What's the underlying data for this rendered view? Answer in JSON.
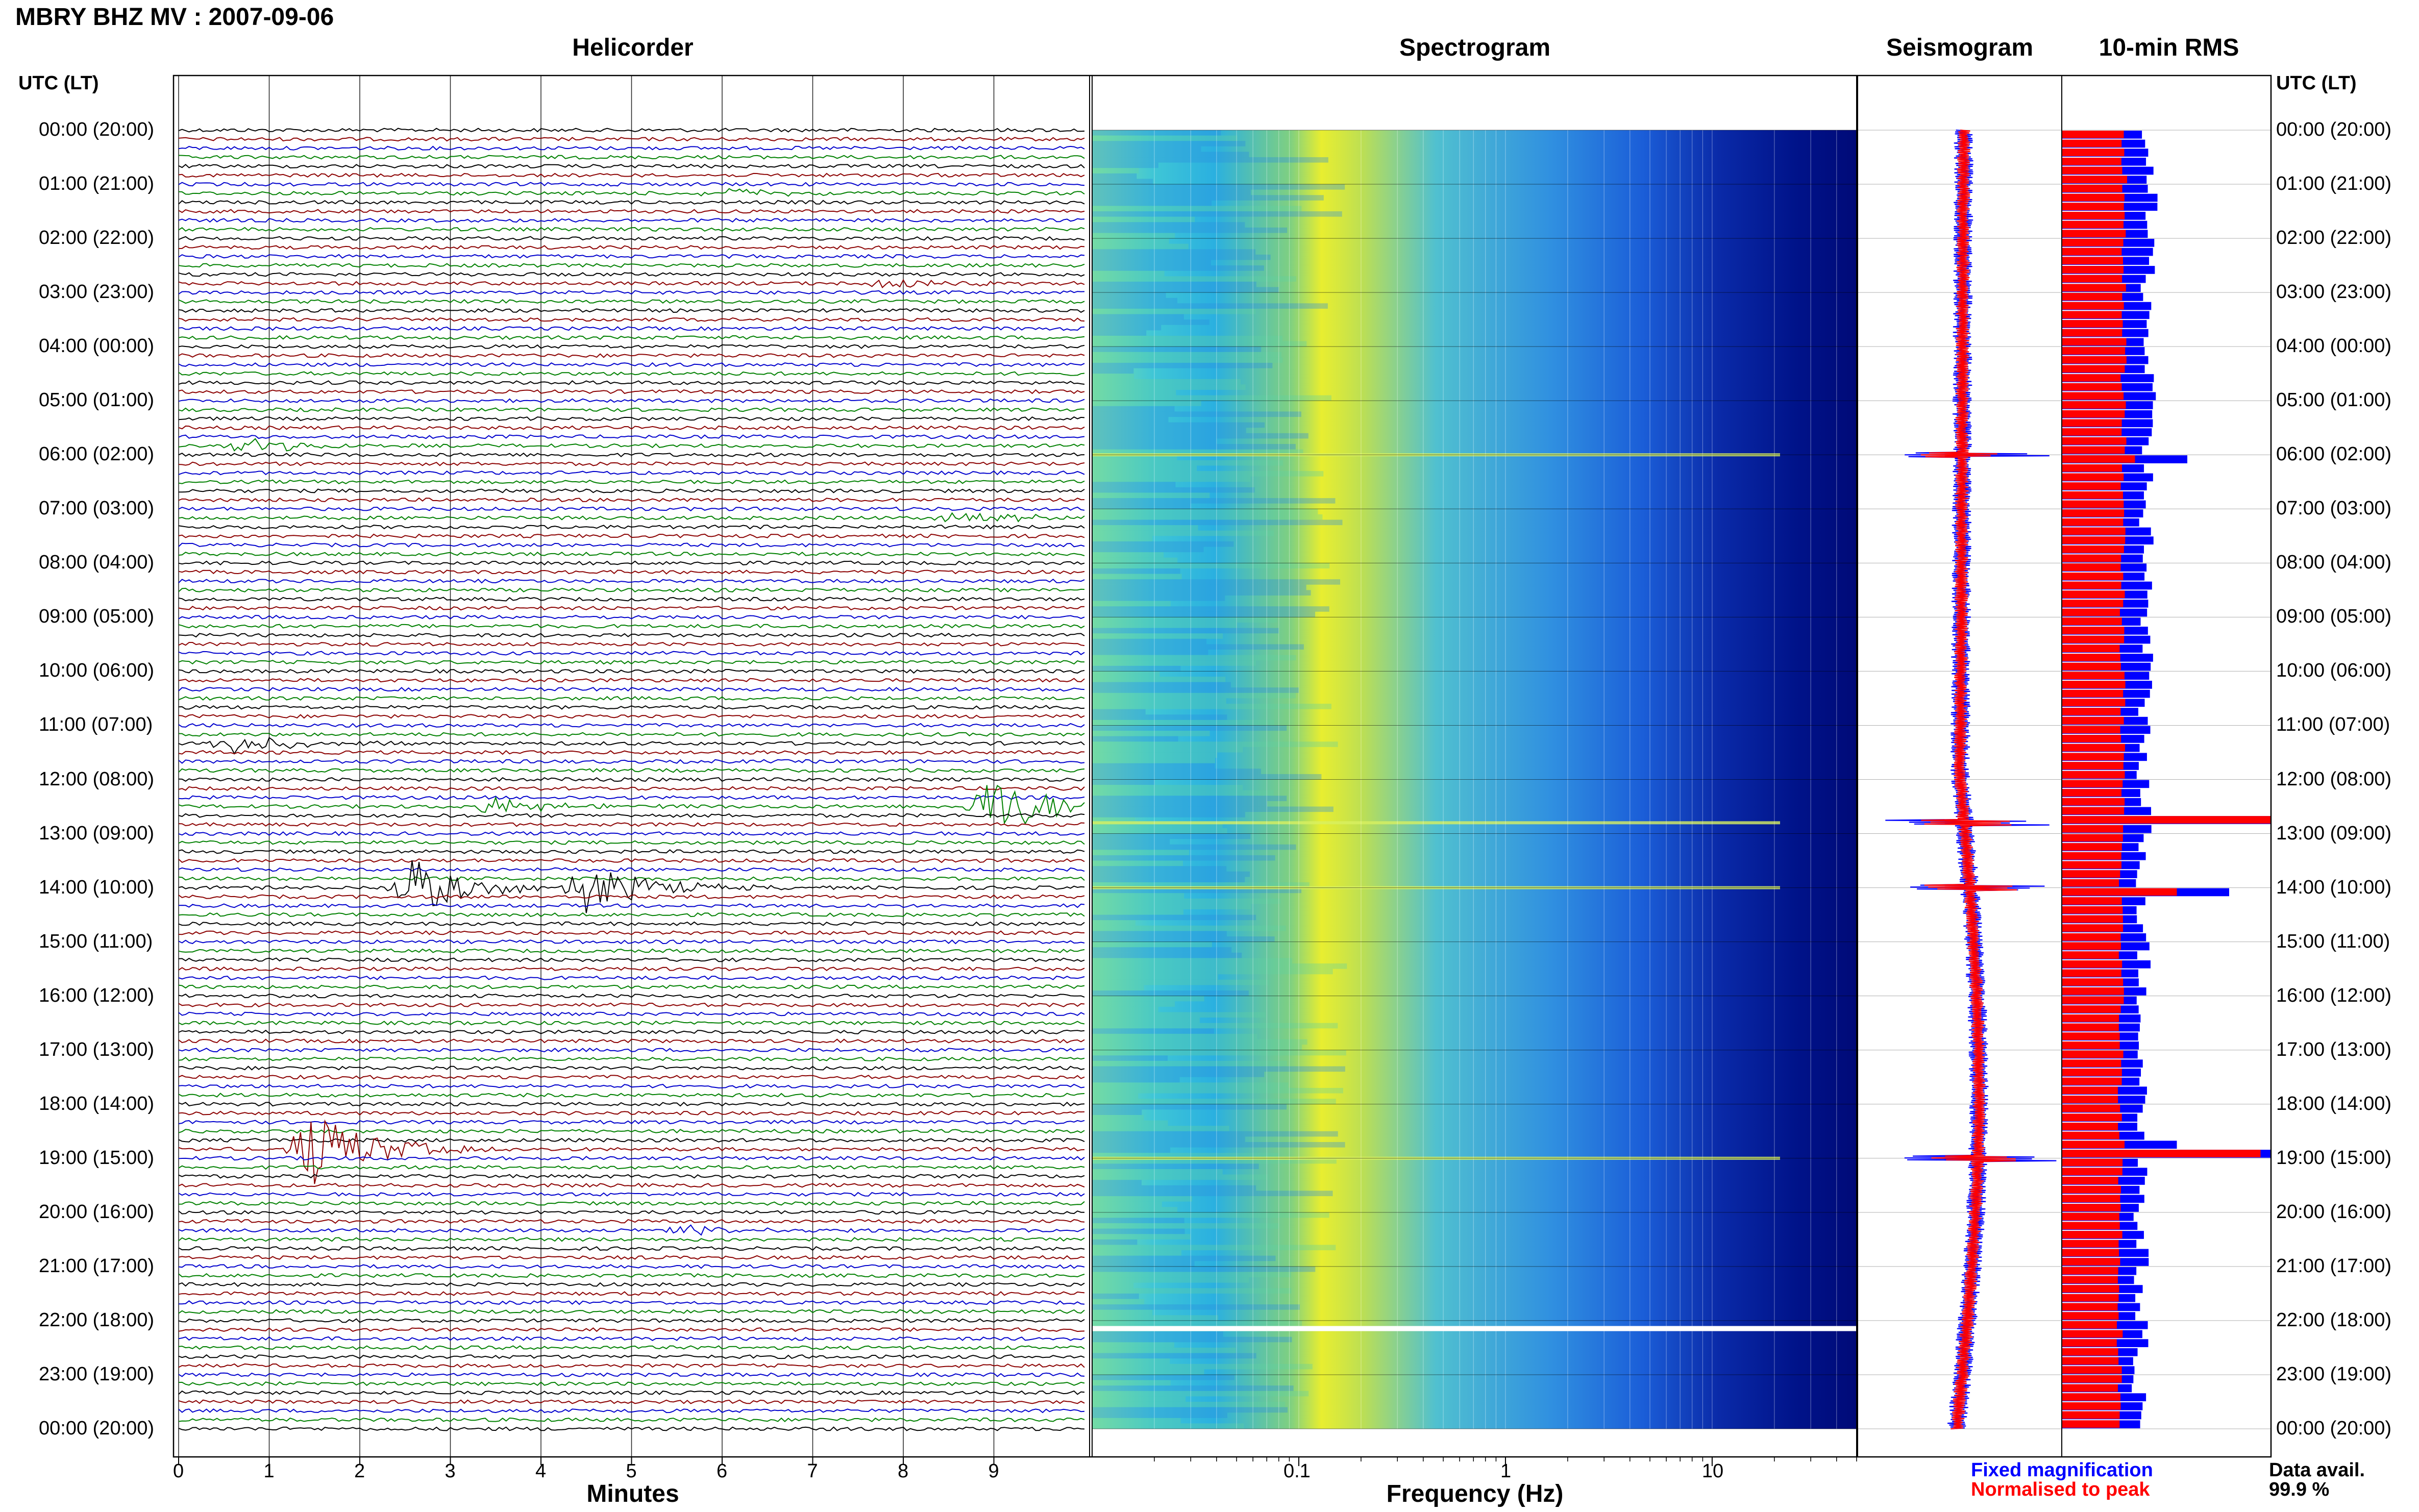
{
  "title": "MBRY BHZ MV : 2007-09-06",
  "colors": {
    "trace_cycle": [
      "#000000",
      "#8b0000",
      "#0000cd",
      "#008000"
    ],
    "fixed": "#0000ff",
    "normalised": "#ff0000",
    "grid": "#b0b0b0"
  },
  "time_axis": {
    "header": "UTC (LT)",
    "hours": [
      "00:00 (20:00)",
      "01:00 (21:00)",
      "02:00 (22:00)",
      "03:00 (23:00)",
      "04:00 (00:00)",
      "05:00 (01:00)",
      "06:00 (02:00)",
      "07:00 (03:00)",
      "08:00 (04:00)",
      "09:00 (05:00)",
      "10:00 (06:00)",
      "11:00 (07:00)",
      "12:00 (08:00)",
      "13:00 (09:00)",
      "14:00 (10:00)",
      "15:00 (11:00)",
      "16:00 (12:00)",
      "17:00 (13:00)",
      "18:00 (14:00)",
      "19:00 (15:00)",
      "20:00 (16:00)",
      "21:00 (17:00)",
      "22:00 (18:00)",
      "23:00 (19:00)",
      "00:00 (20:00)"
    ]
  },
  "chart_data": [
    {
      "type": "line",
      "panel": "helicorder",
      "title": "Helicorder",
      "xlabel": "Minutes",
      "xlim": [
        0,
        10
      ],
      "xticks": [
        "0",
        "1",
        "2",
        "3",
        "4",
        "5",
        "6",
        "7",
        "8",
        "9"
      ],
      "lines_per_hour": 6,
      "events": [
        {
          "hour": 1.2,
          "minute": 6.0,
          "amp": 0.3
        },
        {
          "hour": 2.8,
          "minute": 7.8,
          "amp": 0.3
        },
        {
          "hour": 5.8,
          "minute": 0.8,
          "amp": 0.5
        },
        {
          "hour": 7.2,
          "minute": 8.6,
          "amp": 0.4
        },
        {
          "hour": 11.3,
          "minute": 0.6,
          "amp": 0.6
        },
        {
          "hour": 12.5,
          "minute": 3.5,
          "amp": 0.5
        },
        {
          "hour": 12.5,
          "minute": 9.0,
          "amp": 1.8
        },
        {
          "hour": 14.0,
          "minute": 2.6,
          "amp": 1.6
        },
        {
          "hour": 14.0,
          "minute": 4.5,
          "amp": 1.4
        },
        {
          "hour": 18.8,
          "minute": 1.5,
          "amp": 2.2
        },
        {
          "hour": 20.3,
          "minute": 5.5,
          "amp": 0.3
        }
      ]
    },
    {
      "type": "heatmap",
      "panel": "spectrogram",
      "title": "Spectrogram",
      "xlabel": "Frequency (Hz)",
      "xscale": "log",
      "xlim": [
        0.01,
        50
      ],
      "xticks": [
        "0.1",
        "1",
        "10"
      ]
    },
    {
      "type": "line",
      "panel": "seismogram",
      "title": "Seismogram",
      "series": [
        {
          "name": "Fixed magnification"
        },
        {
          "name": "Normalised to peak"
        }
      ],
      "spikes_hours": [
        6.0,
        12.8,
        14.0,
        19.0
      ]
    },
    {
      "type": "bar",
      "panel": "rms",
      "title": "10-min RMS",
      "orientation": "horizontal",
      "series": [
        {
          "name": "Fixed magnification"
        },
        {
          "name": "Normalised to peak"
        }
      ],
      "base_fixed": 0.42,
      "base_norm": 0.3,
      "peaks": [
        {
          "hour": 6.0,
          "fixed": 0.6,
          "norm": 0.35
        },
        {
          "hour": 12.6,
          "fixed": 1.0,
          "norm": 1.0
        },
        {
          "hour": 14.0,
          "fixed": 0.8,
          "norm": 0.55
        },
        {
          "hour": 18.6,
          "fixed": 0.55,
          "norm": 0.3
        },
        {
          "hour": 18.9,
          "fixed": 1.0,
          "norm": 0.95
        }
      ]
    }
  ],
  "legend": {
    "fixed_label": "Fixed magnification",
    "normalised_label": "Normalised to peak"
  },
  "data_availability": {
    "label": "Data avail.",
    "value": "99.9 %"
  }
}
